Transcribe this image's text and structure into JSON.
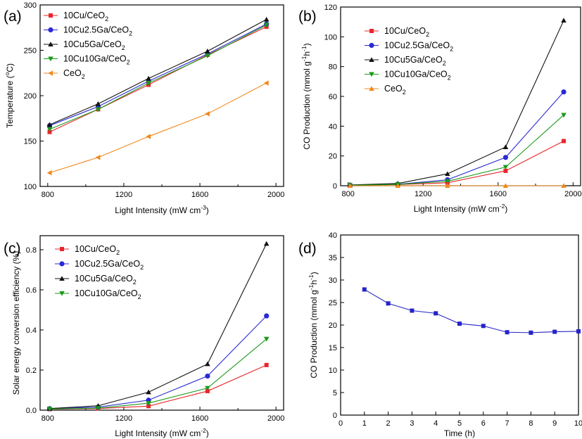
{
  "chart_data": [
    {
      "id": "a",
      "type": "line",
      "panel_label": "(a)",
      "xlabel": "Light Intensity (mW cm",
      "xlabel_sup": "-3",
      "xlabel_tail": ")",
      "ylabel": "Temperature (",
      "ylabel_sup": "o",
      "ylabel_tail": "C)",
      "xlim": [
        760,
        2040
      ],
      "ylim": [
        100,
        300
      ],
      "xticks": [
        800,
        1200,
        1600,
        2000
      ],
      "yticks": [
        100,
        150,
        200,
        250,
        300
      ],
      "x": [
        810,
        1065,
        1330,
        1640,
        1950
      ],
      "legend_position": "top-left",
      "series": [
        {
          "name": "10Cu/CeO",
          "sub": "2",
          "color": "#e8262a",
          "marker": "square",
          "values": [
            160,
            185,
            212,
            245,
            276
          ]
        },
        {
          "name": "10Cu2.5Ga/CeO",
          "sub": "2",
          "color": "#2a2ad6",
          "marker": "circle",
          "values": [
            167,
            188,
            216,
            246,
            279
          ]
        },
        {
          "name": "10Cu5Ga/CeO",
          "sub": "2",
          "color": "#111111",
          "marker": "triangle-up",
          "values": [
            168,
            191,
            219,
            249,
            284
          ]
        },
        {
          "name": "10Cu10Ga/CeO",
          "sub": "2",
          "color": "#1a9a1a",
          "marker": "triangle-down",
          "values": [
            163,
            185,
            214,
            244,
            278
          ]
        },
        {
          "name": "CeO",
          "sub": "2",
          "color": "#f08a1c",
          "marker": "triangle-left",
          "values": [
            115,
            132,
            155,
            180,
            214
          ]
        }
      ]
    },
    {
      "id": "b",
      "type": "line",
      "panel_label": "(b)",
      "xlabel": "Light Intensity (mW cm",
      "xlabel_sup": "-2",
      "xlabel_tail": ")",
      "ylabel": "CO Production (mmol g",
      "ylabel_sup": "-1",
      "ylabel_mid": "h",
      "ylabel_sup2": "-1",
      "ylabel_tail": ")",
      "xlim": [
        760,
        2040
      ],
      "ylim": [
        0,
        120
      ],
      "xticks": [
        800,
        1200,
        1600,
        2000
      ],
      "yticks": [
        0,
        20,
        40,
        60,
        80,
        100,
        120
      ],
      "x": [
        810,
        1065,
        1330,
        1640,
        1950
      ],
      "legend_position": "top-left",
      "series": [
        {
          "name": "10Cu/CeO",
          "sub": "2",
          "color": "#e8262a",
          "marker": "square",
          "values": [
            0.3,
            0.8,
            2.0,
            10.0,
            30.0
          ]
        },
        {
          "name": "10Cu2.5Ga/CeO",
          "sub": "2",
          "color": "#2a2ad6",
          "marker": "circle",
          "values": [
            0.4,
            1.0,
            4.0,
            19.0,
            63.0
          ]
        },
        {
          "name": "10Cu5Ga/CeO",
          "sub": "2",
          "color": "#111111",
          "marker": "triangle-up",
          "values": [
            0.5,
            1.5,
            8.0,
            26.0,
            111.0
          ]
        },
        {
          "name": "10Cu10Ga/CeO",
          "sub": "2",
          "color": "#1a9a1a",
          "marker": "triangle-down",
          "values": [
            0.3,
            0.9,
            3.0,
            12.5,
            47.5
          ]
        },
        {
          "name": "CeO",
          "sub": "2",
          "color": "#f08a1c",
          "marker": "triangle-up",
          "values": [
            0,
            0,
            0,
            0,
            0
          ]
        }
      ]
    },
    {
      "id": "c",
      "type": "line",
      "panel_label": "(c)",
      "xlabel": "Light Intensity (mW cm",
      "xlabel_sup": "-2",
      "xlabel_tail": ")",
      "ylabel": "Solar energy conversion efficiency (%)",
      "xlim": [
        760,
        2040
      ],
      "ylim": [
        0,
        0.87
      ],
      "xticks": [
        800,
        1200,
        1600,
        2000
      ],
      "yticks": [
        0.0,
        0.2,
        0.4,
        0.6,
        0.8
      ],
      "ytick_labels": [
        "0.0",
        "0.2",
        "0.4",
        "0.6",
        "0.8"
      ],
      "x": [
        810,
        1065,
        1330,
        1640,
        1950
      ],
      "legend_position": "top-left",
      "series": [
        {
          "name": "10Cu/CeO",
          "sub": "2",
          "color": "#e8262a",
          "marker": "square",
          "values": [
            0.005,
            0.008,
            0.02,
            0.095,
            0.225
          ]
        },
        {
          "name": "10Cu2.5Ga/CeO",
          "sub": "2",
          "color": "#2a2ad6",
          "marker": "circle",
          "values": [
            0.007,
            0.015,
            0.05,
            0.17,
            0.47
          ]
        },
        {
          "name": "10Cu5Ga/CeO",
          "sub": "2",
          "color": "#111111",
          "marker": "triangle-up",
          "values": [
            0.008,
            0.022,
            0.09,
            0.23,
            0.83
          ]
        },
        {
          "name": "10Cu10Ga/CeO",
          "sub": "2",
          "color": "#1a9a1a",
          "marker": "triangle-down",
          "values": [
            0.006,
            0.01,
            0.035,
            0.11,
            0.355
          ]
        }
      ]
    },
    {
      "id": "d",
      "type": "line",
      "panel_label": "(d)",
      "xlabel": "Time (h)",
      "ylabel": "CO Production (mmol g",
      "ylabel_sup": "-1",
      "ylabel_mid": "h",
      "ylabel_sup2": "-1",
      "ylabel_tail": ")",
      "xlim": [
        0,
        10
      ],
      "ylim": [
        0,
        40
      ],
      "xticks": [
        0,
        1,
        2,
        3,
        4,
        5,
        6,
        7,
        8,
        9,
        10
      ],
      "yticks": [
        0,
        5,
        10,
        15,
        20,
        25,
        30,
        35,
        40
      ],
      "x": [
        1,
        2,
        3,
        4,
        5,
        6,
        7,
        8,
        9,
        10
      ],
      "series": [
        {
          "name": "",
          "sub": "",
          "color": "#2424c8",
          "marker": "square",
          "values": [
            27.9,
            24.8,
            23.2,
            22.6,
            20.3,
            19.8,
            18.4,
            18.3,
            18.5,
            18.6
          ]
        }
      ]
    }
  ]
}
